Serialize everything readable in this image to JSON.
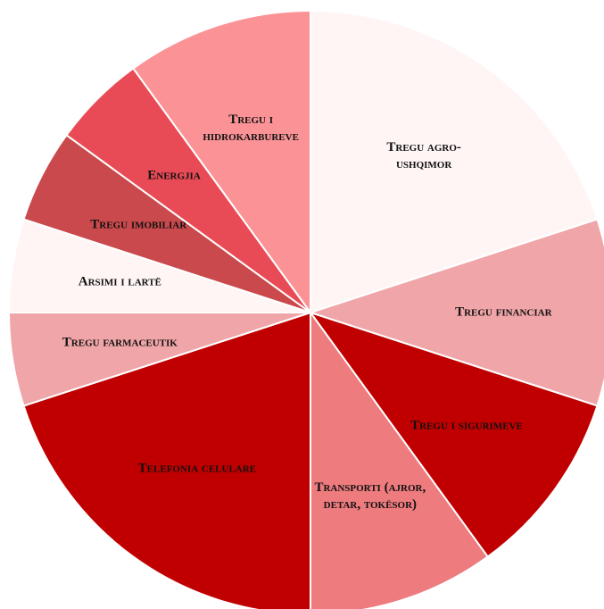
{
  "chart_data": {
    "type": "pie",
    "categories": [
      "Tregu agro-ushqimor",
      "Tregu financiar",
      "Tregu i sigurimeve",
      "Transporti (ajror, detar, tokësor)",
      "Telefonia celulare",
      "Tregu farmaceutik",
      "Arsimi i lartë",
      "Tregu imobiliar",
      "Energjia",
      "Tregu i hidrokarbureve"
    ],
    "values": [
      20,
      10,
      10,
      10,
      20,
      5,
      5,
      5,
      5,
      10
    ],
    "colors": [
      "#fff5f5",
      "#f0a5a8",
      "#c00000",
      "#ee7b7e",
      "#c00000",
      "#f0a5a8",
      "#fff5f5",
      "#c9494c",
      "#e84b55",
      "#fb9396"
    ]
  }
}
